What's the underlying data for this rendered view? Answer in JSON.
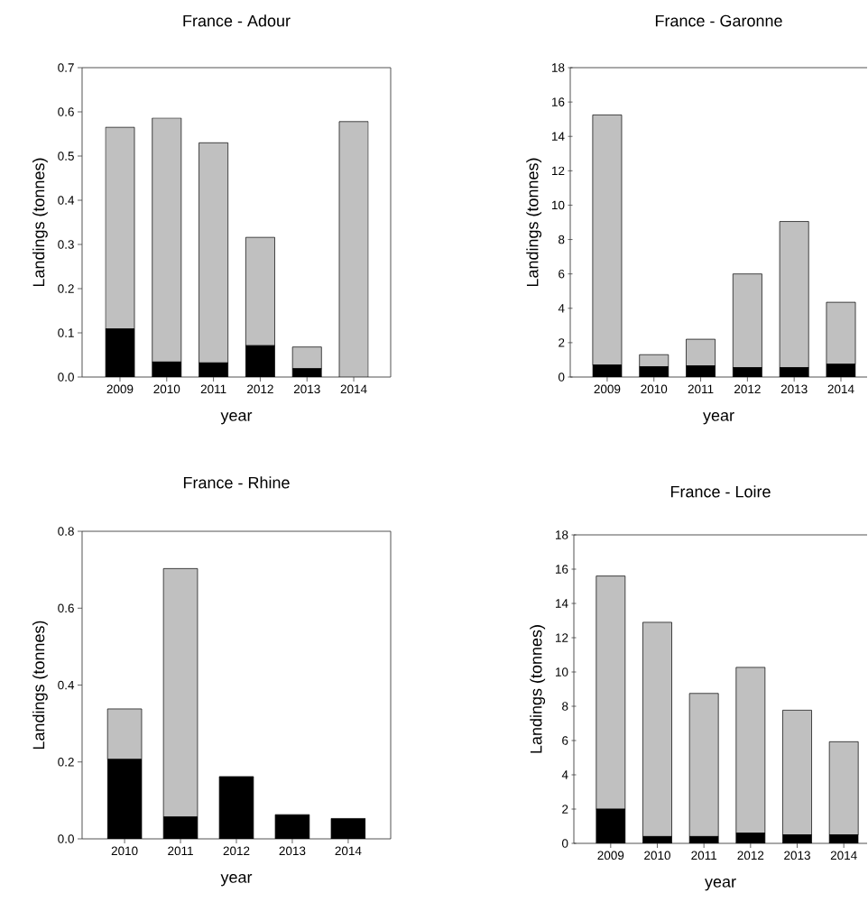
{
  "chart_data": [
    {
      "type": "bar",
      "title": "France - Adour",
      "xlabel": "year",
      "ylabel": "Landings (tonnes)",
      "stacked": true,
      "categories": [
        "2009",
        "2010",
        "2011",
        "2012",
        "2013",
        "2014"
      ],
      "series": [
        {
          "color": "#000000",
          "values": [
            0.109,
            0.034,
            0.032,
            0.071,
            0.019,
            null
          ]
        },
        {
          "color": "#c0c0c0",
          "values": [
            0.456,
            0.552,
            0.498,
            0.245,
            0.049,
            0.578
          ]
        }
      ],
      "ylim": [
        0,
        0.7
      ],
      "yticks": [
        {
          "value": 0,
          "label": "0.0"
        },
        0.1,
        0.2,
        0.3,
        0.4,
        0.5,
        0.6,
        0.7
      ]
    },
    {
      "type": "bar",
      "title": "France - Garonne",
      "xlabel": "year",
      "ylabel": "Landings (tonnes)",
      "stacked": true,
      "categories": [
        "2009",
        "2010",
        "2011",
        "2012",
        "2013",
        "2014"
      ],
      "series": [
        {
          "color": "#000000",
          "values": [
            0.7,
            0.6,
            0.65,
            0.55,
            0.55,
            0.75
          ]
        },
        {
          "color": "#c0c0c0",
          "values": [
            14.55,
            0.7,
            1.55,
            5.45,
            8.5,
            3.6
          ]
        }
      ],
      "ylim": [
        0,
        18
      ],
      "yticks": [
        0,
        2,
        4,
        6,
        8,
        10,
        12,
        14,
        16,
        18
      ]
    },
    {
      "type": "bar",
      "title": "France - Rhine",
      "xlabel": "year",
      "ylabel": "Landings (tonnes)",
      "stacked": true,
      "categories": [
        "2010",
        "2011",
        "2012",
        "2013",
        "2014"
      ],
      "series": [
        {
          "color": "#000000",
          "values": [
            0.207,
            0.057,
            0.162,
            0.063,
            0.053
          ]
        },
        {
          "color": "#c0c0c0",
          "values": [
            0.131,
            0.646,
            null,
            null,
            null
          ]
        }
      ],
      "ylim": [
        0,
        0.8
      ],
      "yticks": [
        {
          "value": 0,
          "label": "0.0"
        },
        0.2,
        0.4,
        0.6,
        0.8
      ]
    },
    {
      "type": "bar",
      "title": "France - Loire",
      "xlabel": "year",
      "ylabel": "Landings (tonnes)",
      "stacked": true,
      "categories": [
        "2009",
        "2010",
        "2011",
        "2012",
        "2013",
        "2014"
      ],
      "series": [
        {
          "color": "#000000",
          "values": [
            2.0,
            0.4,
            0.4,
            0.6,
            0.5,
            0.5
          ]
        },
        {
          "color": "#c0c0c0",
          "values": [
            13.6,
            12.5,
            8.35,
            9.67,
            7.27,
            5.43
          ]
        }
      ],
      "ylim": [
        0,
        18
      ],
      "yticks": [
        0,
        2,
        4,
        6,
        8,
        10,
        12,
        14,
        16,
        18
      ]
    }
  ]
}
